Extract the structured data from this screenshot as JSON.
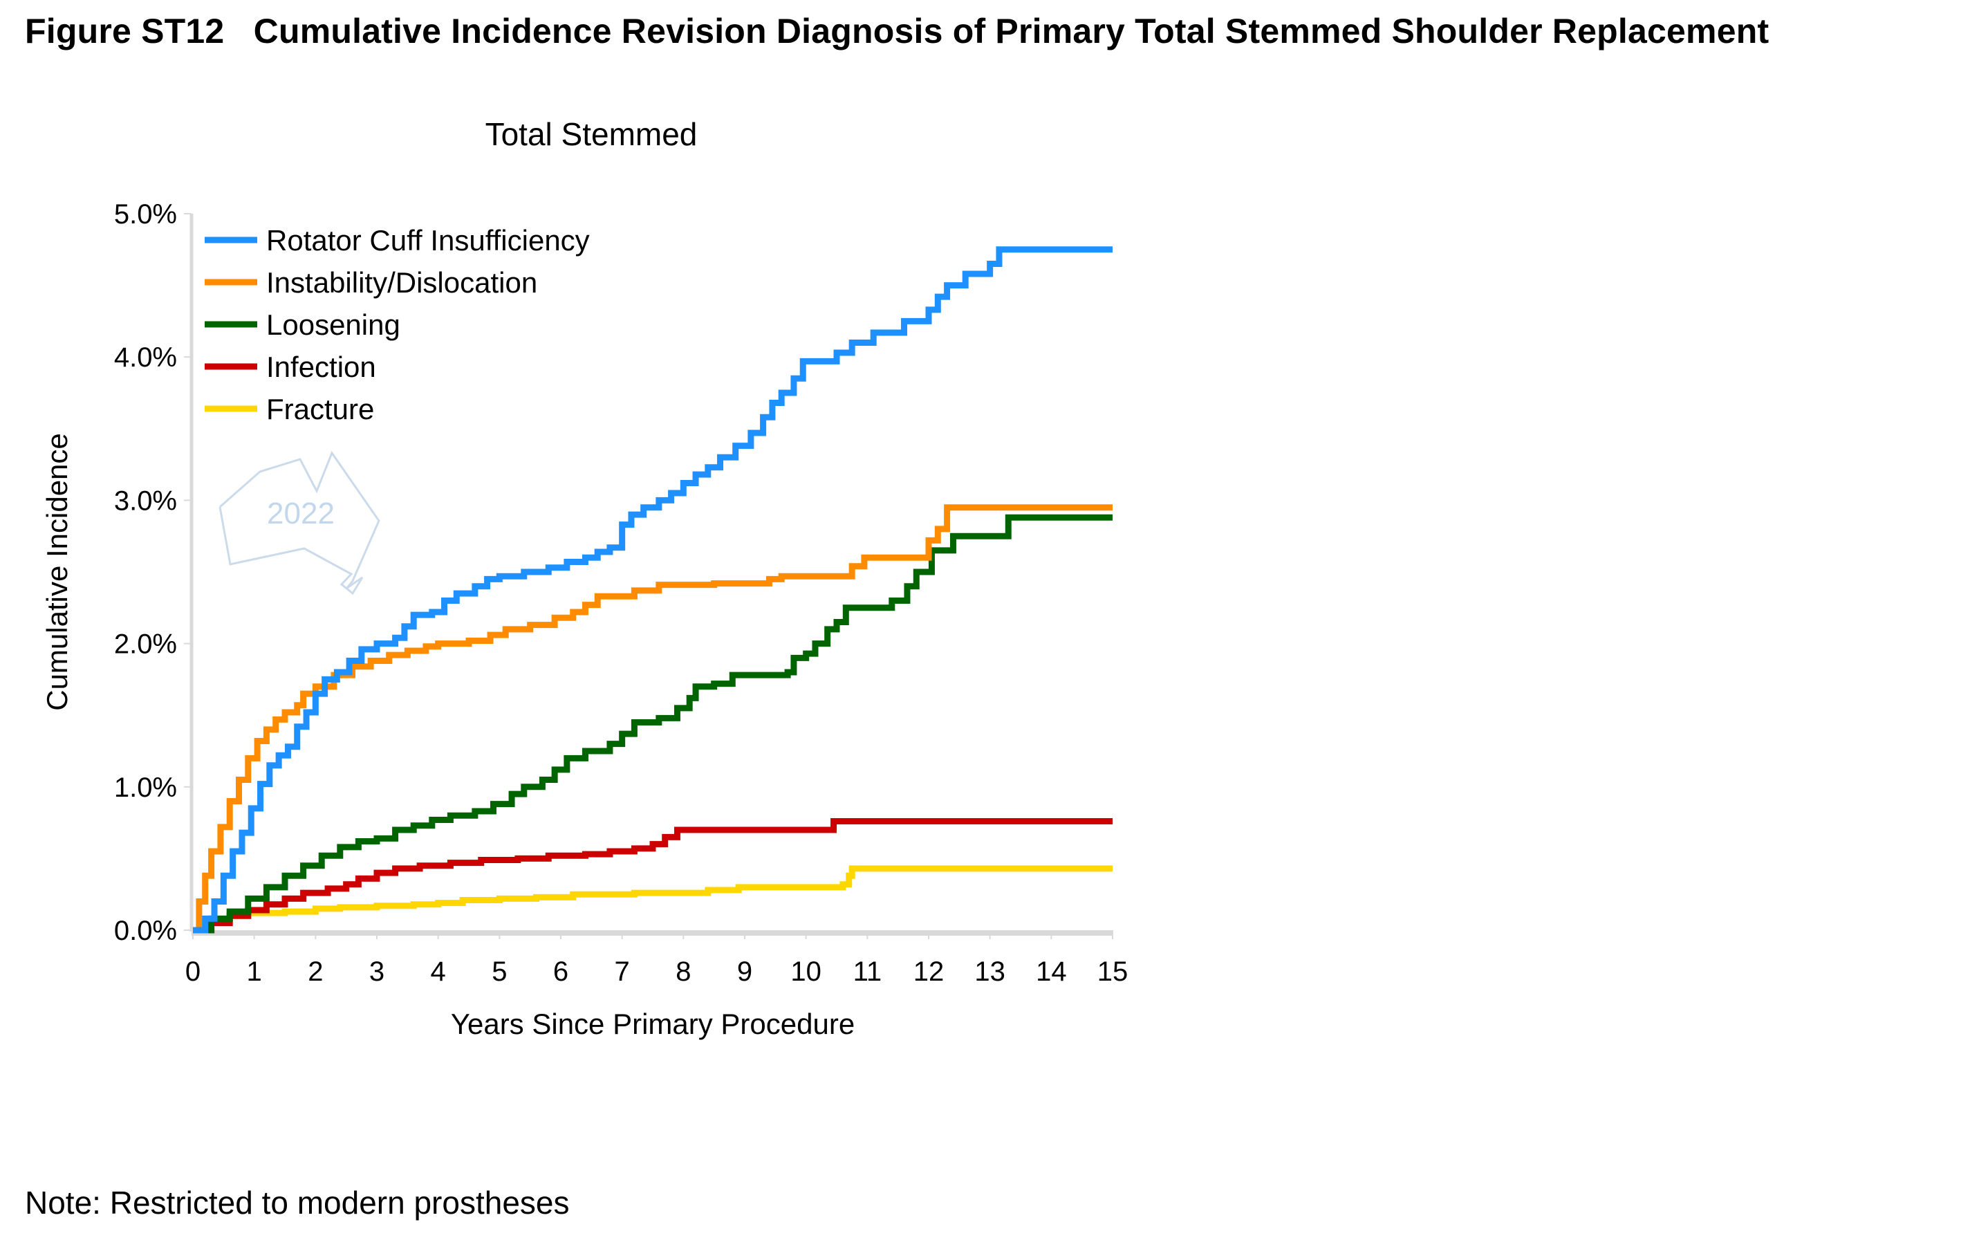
{
  "figure": {
    "title": "Figure ST12   Cumulative Incidence Revision Diagnosis of Primary Total Stemmed Shoulder Replacement",
    "note": "Note: Restricted to modern prostheses",
    "watermark": "2022"
  },
  "chart_data": {
    "type": "line",
    "step": true,
    "title": "Total Stemmed",
    "xlabel": "Years Since Primary Procedure",
    "ylabel": "Cumulative Incidence",
    "xlim": [
      0,
      15
    ],
    "ylim": [
      0,
      5.0
    ],
    "x_ticks": [
      "0",
      "1",
      "2",
      "3",
      "4",
      "5",
      "6",
      "7",
      "8",
      "9",
      "10",
      "11",
      "12",
      "13",
      "14",
      "15"
    ],
    "y_ticks": [
      "0.0%",
      "1.0%",
      "2.0%",
      "3.0%",
      "4.0%",
      "5.0%"
    ],
    "y_unit": "%",
    "grid": false,
    "legend_position": "top-left",
    "series": [
      {
        "name": "Rotator Cuff Insufficiency",
        "color": "#1e90ff",
        "points": [
          [
            0,
            0
          ],
          [
            0.2,
            0.08
          ],
          [
            0.35,
            0.2
          ],
          [
            0.5,
            0.38
          ],
          [
            0.65,
            0.55
          ],
          [
            0.8,
            0.68
          ],
          [
            0.95,
            0.85
          ],
          [
            1.1,
            1.02
          ],
          [
            1.25,
            1.15
          ],
          [
            1.4,
            1.22
          ],
          [
            1.55,
            1.28
          ],
          [
            1.7,
            1.42
          ],
          [
            1.85,
            1.52
          ],
          [
            2.0,
            1.65
          ],
          [
            2.15,
            1.75
          ],
          [
            2.35,
            1.8
          ],
          [
            2.55,
            1.88
          ],
          [
            2.75,
            1.96
          ],
          [
            3.0,
            2.0
          ],
          [
            3.3,
            2.04
          ],
          [
            3.45,
            2.12
          ],
          [
            3.6,
            2.2
          ],
          [
            3.9,
            2.22
          ],
          [
            4.1,
            2.3
          ],
          [
            4.3,
            2.35
          ],
          [
            4.6,
            2.4
          ],
          [
            4.8,
            2.45
          ],
          [
            5.0,
            2.47
          ],
          [
            5.4,
            2.5
          ],
          [
            5.8,
            2.53
          ],
          [
            6.1,
            2.57
          ],
          [
            6.4,
            2.6
          ],
          [
            6.6,
            2.64
          ],
          [
            6.8,
            2.67
          ],
          [
            7.0,
            2.83
          ],
          [
            7.15,
            2.9
          ],
          [
            7.35,
            2.95
          ],
          [
            7.6,
            3.0
          ],
          [
            7.8,
            3.05
          ],
          [
            8.0,
            3.12
          ],
          [
            8.2,
            3.18
          ],
          [
            8.4,
            3.23
          ],
          [
            8.6,
            3.3
          ],
          [
            8.85,
            3.38
          ],
          [
            9.1,
            3.47
          ],
          [
            9.3,
            3.58
          ],
          [
            9.45,
            3.68
          ],
          [
            9.6,
            3.75
          ],
          [
            9.8,
            3.85
          ],
          [
            9.95,
            3.97
          ],
          [
            10.5,
            4.03
          ],
          [
            10.75,
            4.1
          ],
          [
            11.1,
            4.17
          ],
          [
            11.6,
            4.25
          ],
          [
            12.0,
            4.33
          ],
          [
            12.15,
            4.42
          ],
          [
            12.3,
            4.5
          ],
          [
            12.6,
            4.58
          ],
          [
            13.0,
            4.65
          ],
          [
            13.15,
            4.75
          ],
          [
            15,
            4.75
          ]
        ]
      },
      {
        "name": "Instability/Dislocation",
        "color": "#ff8c00",
        "points": [
          [
            0,
            0
          ],
          [
            0.1,
            0.2
          ],
          [
            0.2,
            0.38
          ],
          [
            0.3,
            0.55
          ],
          [
            0.45,
            0.72
          ],
          [
            0.6,
            0.9
          ],
          [
            0.75,
            1.05
          ],
          [
            0.9,
            1.2
          ],
          [
            1.05,
            1.32
          ],
          [
            1.2,
            1.4
          ],
          [
            1.35,
            1.47
          ],
          [
            1.5,
            1.52
          ],
          [
            1.7,
            1.57
          ],
          [
            1.8,
            1.65
          ],
          [
            2.0,
            1.7
          ],
          [
            2.3,
            1.78
          ],
          [
            2.6,
            1.84
          ],
          [
            2.9,
            1.88
          ],
          [
            3.2,
            1.92
          ],
          [
            3.5,
            1.95
          ],
          [
            3.8,
            1.98
          ],
          [
            4.0,
            2.0
          ],
          [
            4.5,
            2.02
          ],
          [
            4.85,
            2.06
          ],
          [
            5.1,
            2.1
          ],
          [
            5.5,
            2.13
          ],
          [
            5.9,
            2.18
          ],
          [
            6.2,
            2.22
          ],
          [
            6.4,
            2.27
          ],
          [
            6.6,
            2.33
          ],
          [
            7.2,
            2.37
          ],
          [
            7.6,
            2.41
          ],
          [
            8.5,
            2.42
          ],
          [
            9.4,
            2.45
          ],
          [
            9.6,
            2.47
          ],
          [
            10.0,
            2.47
          ],
          [
            10.6,
            2.47
          ],
          [
            10.75,
            2.54
          ],
          [
            10.95,
            2.6
          ],
          [
            11.9,
            2.6
          ],
          [
            12.0,
            2.72
          ],
          [
            12.15,
            2.8
          ],
          [
            12.3,
            2.95
          ],
          [
            15,
            2.95
          ]
        ]
      },
      {
        "name": "Loosening",
        "color": "#006400",
        "points": [
          [
            0,
            0
          ],
          [
            0.3,
            0.08
          ],
          [
            0.6,
            0.13
          ],
          [
            0.9,
            0.22
          ],
          [
            1.2,
            0.3
          ],
          [
            1.5,
            0.38
          ],
          [
            1.8,
            0.45
          ],
          [
            2.1,
            0.52
          ],
          [
            2.4,
            0.58
          ],
          [
            2.7,
            0.62
          ],
          [
            3.0,
            0.64
          ],
          [
            3.3,
            0.7
          ],
          [
            3.6,
            0.73
          ],
          [
            3.9,
            0.77
          ],
          [
            4.2,
            0.8
          ],
          [
            4.6,
            0.83
          ],
          [
            4.9,
            0.88
          ],
          [
            5.2,
            0.95
          ],
          [
            5.4,
            1.0
          ],
          [
            5.7,
            1.05
          ],
          [
            5.9,
            1.12
          ],
          [
            6.1,
            1.2
          ],
          [
            6.4,
            1.25
          ],
          [
            6.8,
            1.3
          ],
          [
            7.0,
            1.37
          ],
          [
            7.2,
            1.45
          ],
          [
            7.6,
            1.48
          ],
          [
            7.9,
            1.55
          ],
          [
            8.1,
            1.62
          ],
          [
            8.2,
            1.7
          ],
          [
            8.5,
            1.72
          ],
          [
            8.8,
            1.78
          ],
          [
            9.7,
            1.8
          ],
          [
            9.8,
            1.9
          ],
          [
            10.0,
            1.93
          ],
          [
            10.15,
            2.0
          ],
          [
            10.35,
            2.1
          ],
          [
            10.5,
            2.15
          ],
          [
            10.65,
            2.25
          ],
          [
            11.4,
            2.3
          ],
          [
            11.65,
            2.4
          ],
          [
            11.8,
            2.5
          ],
          [
            12.05,
            2.65
          ],
          [
            12.4,
            2.75
          ],
          [
            13.3,
            2.88
          ],
          [
            15,
            2.88
          ]
        ]
      },
      {
        "name": "Infection",
        "color": "#cc0000",
        "points": [
          [
            0,
            0
          ],
          [
            0.3,
            0.05
          ],
          [
            0.6,
            0.1
          ],
          [
            0.9,
            0.14
          ],
          [
            1.2,
            0.18
          ],
          [
            1.5,
            0.22
          ],
          [
            1.8,
            0.26
          ],
          [
            2.2,
            0.29
          ],
          [
            2.5,
            0.32
          ],
          [
            2.7,
            0.36
          ],
          [
            3.0,
            0.4
          ],
          [
            3.3,
            0.43
          ],
          [
            3.7,
            0.45
          ],
          [
            4.2,
            0.47
          ],
          [
            4.7,
            0.49
          ],
          [
            5.3,
            0.5
          ],
          [
            5.8,
            0.52
          ],
          [
            6.4,
            0.53
          ],
          [
            6.8,
            0.55
          ],
          [
            7.2,
            0.57
          ],
          [
            7.5,
            0.6
          ],
          [
            7.7,
            0.65
          ],
          [
            7.9,
            0.7
          ],
          [
            10.4,
            0.7
          ],
          [
            10.45,
            0.76
          ],
          [
            15,
            0.76
          ]
        ]
      },
      {
        "name": "Fracture",
        "color": "#ffd700",
        "points": [
          [
            0,
            0
          ],
          [
            0.15,
            0.05
          ],
          [
            0.3,
            0.08
          ],
          [
            0.6,
            0.1
          ],
          [
            0.9,
            0.12
          ],
          [
            1.5,
            0.13
          ],
          [
            2.0,
            0.15
          ],
          [
            2.4,
            0.16
          ],
          [
            3.0,
            0.17
          ],
          [
            3.6,
            0.18
          ],
          [
            4.0,
            0.19
          ],
          [
            4.4,
            0.21
          ],
          [
            5.0,
            0.22
          ],
          [
            5.6,
            0.23
          ],
          [
            6.2,
            0.25
          ],
          [
            7.2,
            0.26
          ],
          [
            8.4,
            0.28
          ],
          [
            8.9,
            0.3
          ],
          [
            10.6,
            0.32
          ],
          [
            10.7,
            0.38
          ],
          [
            10.75,
            0.43
          ],
          [
            15,
            0.43
          ]
        ]
      }
    ]
  }
}
